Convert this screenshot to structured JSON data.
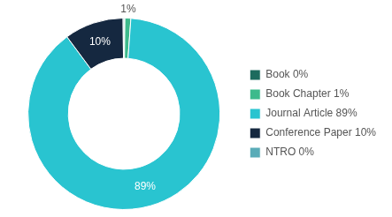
{
  "chart_data": {
    "type": "donut",
    "categories": [
      "Book 0%",
      "Book Chapter 1%",
      "Journal Article 89%",
      "Conference Paper 10%",
      "NTRO 0%"
    ],
    "values": [
      0.15,
      1,
      89,
      10,
      0.15
    ],
    "value_labels": [
      null,
      "1%",
      "89%",
      "10%",
      null
    ],
    "colors": [
      "#1d6b5e",
      "#3dba8c",
      "#29c4d0",
      "#152840",
      "#5aacb8"
    ],
    "data_labels": true,
    "legend": "right"
  }
}
